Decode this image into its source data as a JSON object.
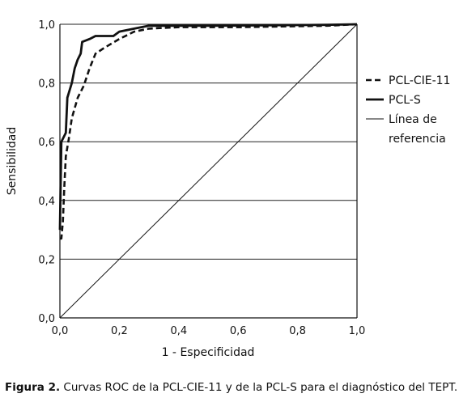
{
  "chart_data": {
    "type": "line",
    "xlabel": "1 - Especificidad",
    "ylabel": "Sensibilidad",
    "xlim": [
      0,
      1
    ],
    "ylim": [
      0,
      1
    ],
    "xticks": [
      "0,0",
      "0,2",
      "0,4",
      "0,6",
      "0,8",
      "1,0"
    ],
    "yticks": [
      "0,0",
      "0,2",
      "0,4",
      "0,6",
      "0,8",
      "1,0"
    ],
    "grid": "horizontal",
    "legend_position": "right",
    "series": [
      {
        "name": "PCL-CIE-11",
        "style": "dashed",
        "points": [
          [
            0.0,
            0.27
          ],
          [
            0.005,
            0.27
          ],
          [
            0.01,
            0.33
          ],
          [
            0.015,
            0.45
          ],
          [
            0.02,
            0.55
          ],
          [
            0.03,
            0.61
          ],
          [
            0.04,
            0.68
          ],
          [
            0.06,
            0.75
          ],
          [
            0.08,
            0.79
          ],
          [
            0.1,
            0.85
          ],
          [
            0.12,
            0.9
          ],
          [
            0.15,
            0.92
          ],
          [
            0.2,
            0.95
          ],
          [
            0.25,
            0.975
          ],
          [
            0.3,
            0.985
          ],
          [
            0.4,
            0.99
          ],
          [
            0.6,
            0.99
          ],
          [
            0.9,
            0.995
          ],
          [
            1.0,
            1.0
          ]
        ]
      },
      {
        "name": "PCL-S",
        "style": "solid",
        "points": [
          [
            0.0,
            0.3
          ],
          [
            0.005,
            0.6
          ],
          [
            0.02,
            0.63
          ],
          [
            0.025,
            0.75
          ],
          [
            0.04,
            0.8
          ],
          [
            0.05,
            0.85
          ],
          [
            0.06,
            0.88
          ],
          [
            0.07,
            0.9
          ],
          [
            0.075,
            0.94
          ],
          [
            0.1,
            0.95
          ],
          [
            0.12,
            0.96
          ],
          [
            0.18,
            0.96
          ],
          [
            0.2,
            0.975
          ],
          [
            0.25,
            0.985
          ],
          [
            0.3,
            0.995
          ],
          [
            0.5,
            0.995
          ],
          [
            0.9,
            0.998
          ],
          [
            1.0,
            1.0
          ]
        ]
      },
      {
        "name": "Línea de referencia",
        "name_lines": [
          "Línea de",
          "referencia"
        ],
        "style": "thin",
        "points": [
          [
            0,
            0
          ],
          [
            1,
            1
          ]
        ]
      }
    ]
  },
  "caption": {
    "label": "Figura 2.",
    "text": " Curvas ROC de la PCL-CIE-11 y de la PCL-S para el diagnóstico del TEPT."
  }
}
